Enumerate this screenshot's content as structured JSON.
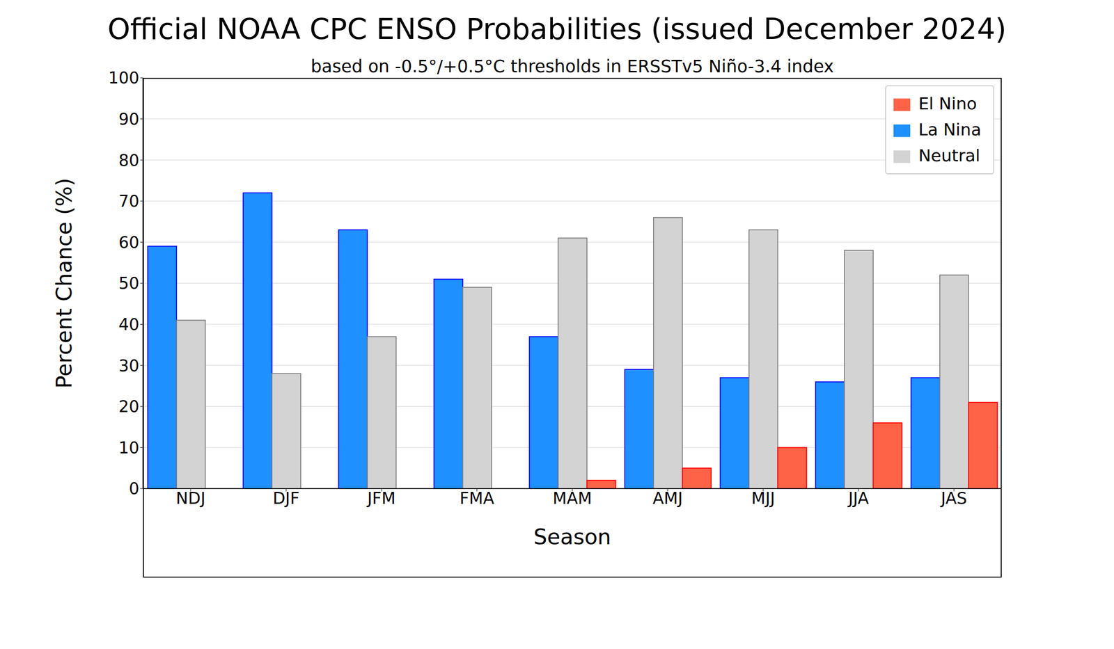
{
  "chart_data": {
    "type": "bar",
    "title": "Official NOAA CPC ENSO Probabilities (issued December 2024)",
    "subtitle": "based on -0.5°/+0.5°C thresholds in ERSSTv5 Niño-3.4 index",
    "x_label": "Season",
    "y_label": "Percent Chance (%)",
    "categories": [
      "NDJ",
      "DJF",
      "JFM",
      "FMA",
      "MAM",
      "AMJ",
      "MJJ",
      "JJA",
      "JAS"
    ],
    "series": [
      {
        "name": "La Nina",
        "color": "#1e90ff",
        "values": [
          59,
          72,
          63,
          51,
          37,
          29,
          27,
          26,
          27
        ]
      },
      {
        "name": "Neutral",
        "color": "#d3d3d3",
        "values": [
          41,
          28,
          37,
          49,
          61,
          66,
          63,
          58,
          52
        ]
      },
      {
        "name": "El Nino",
        "color": "#ff6347",
        "values": [
          0,
          0,
          0,
          0,
          2,
          5,
          10,
          16,
          21
        ]
      }
    ],
    "ylim": [
      0,
      100
    ],
    "yticks": [
      0,
      10,
      20,
      30,
      40,
      50,
      60,
      70,
      80,
      90,
      100
    ],
    "grid": true,
    "legend": "upper right"
  }
}
